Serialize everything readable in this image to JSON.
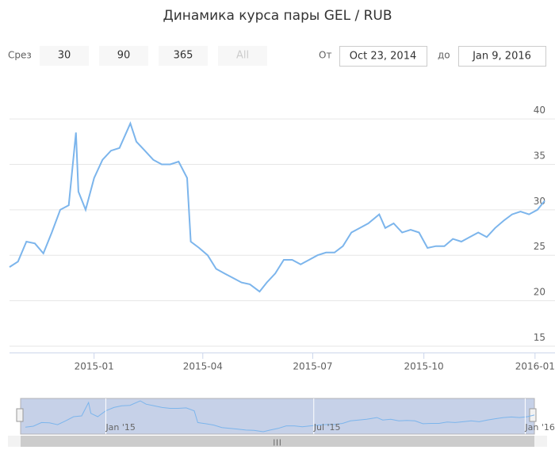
{
  "chart_data": {
    "type": "line",
    "title": "Динамика курса пары GEL / RUB",
    "range_selector": {
      "label": "Срез",
      "buttons": [
        "30",
        "90",
        "365",
        "All"
      ],
      "from_label": "От",
      "from": "Oct 23, 2014",
      "to_label": "до",
      "to": "Jan 9, 2016"
    },
    "x": [
      "2014-10-23",
      "2014-10-30",
      "2014-11-06",
      "2014-11-13",
      "2014-11-20",
      "2014-11-27",
      "2014-12-04",
      "2014-12-11",
      "2014-12-17",
      "2014-12-19",
      "2014-12-25",
      "2015-01-01",
      "2015-01-08",
      "2015-01-15",
      "2015-01-22",
      "2015-01-31",
      "2015-02-05",
      "2015-02-12",
      "2015-02-19",
      "2015-02-26",
      "2015-03-05",
      "2015-03-12",
      "2015-03-19",
      "2015-03-22",
      "2015-03-29",
      "2015-04-05",
      "2015-04-12",
      "2015-04-19",
      "2015-04-26",
      "2015-05-03",
      "2015-05-10",
      "2015-05-18",
      "2015-05-24",
      "2015-05-31",
      "2015-06-07",
      "2015-06-14",
      "2015-06-21",
      "2015-06-28",
      "2015-07-05",
      "2015-07-12",
      "2015-07-19",
      "2015-07-26",
      "2015-08-02",
      "2015-08-09",
      "2015-08-16",
      "2015-08-25",
      "2015-08-30",
      "2015-09-06",
      "2015-09-13",
      "2015-09-20",
      "2015-09-27",
      "2015-10-04",
      "2015-10-11",
      "2015-10-18",
      "2015-10-25",
      "2015-11-01",
      "2015-11-08",
      "2015-11-15",
      "2015-11-22",
      "2015-11-29",
      "2015-12-06",
      "2015-12-13",
      "2015-12-20",
      "2015-12-27",
      "2016-01-03",
      "2016-01-09"
    ],
    "series": [
      {
        "name": "GEL / RUB",
        "color": "#7cb5ec",
        "values": [
          23.7,
          24.3,
          26.5,
          26.3,
          25.2,
          27.5,
          30.0,
          30.5,
          38.5,
          32.0,
          30.0,
          33.5,
          35.5,
          36.5,
          36.8,
          39.5,
          37.5,
          36.5,
          35.5,
          35.0,
          35.0,
          35.3,
          33.5,
          26.5,
          25.8,
          25.0,
          23.5,
          23.0,
          22.5,
          22.0,
          21.8,
          21.0,
          22.0,
          23.0,
          24.5,
          24.5,
          24.0,
          24.5,
          25.0,
          25.3,
          25.3,
          26.0,
          27.5,
          28.0,
          28.5,
          29.5,
          28.0,
          28.5,
          27.5,
          27.8,
          27.5,
          25.8,
          26.0,
          26.0,
          26.8,
          26.5,
          27.0,
          27.5,
          27.0,
          28.0,
          28.8,
          29.5,
          29.8,
          29.5,
          30.0,
          31.0
        ]
      }
    ],
    "xlim": [
      "2014-10-23",
      "2016-01-09"
    ],
    "ylim": [
      14.3,
      44.8
    ],
    "yticks": [
      15,
      20,
      25,
      30,
      35,
      40
    ],
    "xticks": [
      {
        "value": "2015-01-01",
        "label": "2015-01"
      },
      {
        "value": "2015-04-01",
        "label": "2015-04"
      },
      {
        "value": "2015-07-01",
        "label": "2015-07"
      },
      {
        "value": "2015-10-01",
        "label": "2015-10"
      },
      {
        "value": "2016-01-01",
        "label": "2016-01"
      }
    ],
    "grid": true,
    "navigator": {
      "xticks": [
        {
          "value": "2015-01-01",
          "label": "Jan '15"
        },
        {
          "value": "2015-07-01",
          "label": "Jul '15"
        },
        {
          "value": "2016-01-01",
          "label": "Jan '16"
        }
      ]
    }
  }
}
